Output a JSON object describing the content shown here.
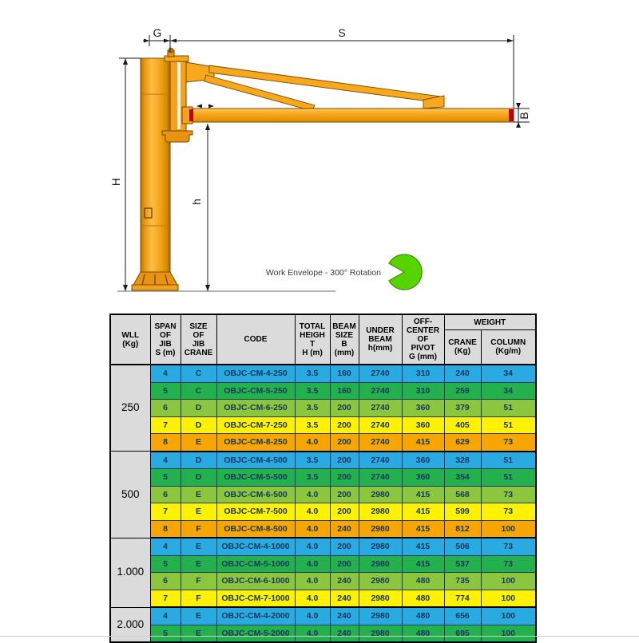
{
  "diagram": {
    "labels": {
      "g": "G",
      "s": "S",
      "h_total": "H",
      "h_under": "h",
      "b": "B"
    },
    "work_envelope_label": "Work Envelope - 300° Rotation",
    "colors": {
      "crane_orange": "#F7A118",
      "crane_outline": "#7A4A00",
      "accent_red": "#C00000",
      "envelope_green": "#55D400"
    }
  },
  "table": {
    "headers": {
      "wll": "WLL\n(Kg)",
      "span": "SPAN\nOF\nJIB\nS (m)",
      "size": "SIZE\nOF\nJIB\nCRANE",
      "code": "CODE",
      "total_height": "TOTAL\nHEIGH\nT\nH (m)",
      "beam_size": "BEAM\nSIZE\nB\n(mm)",
      "under_beam": "UNDER\nBEAM\nh(mm)",
      "off_center": "OFF-\nCENTER\nOF\nPIVOT\nG (mm)",
      "weight": "WEIGHT",
      "crane": "CRANE\n(Kg)",
      "column": "COLUMN\n(Kg/m)"
    },
    "row_fields": [
      "span",
      "size",
      "code",
      "total_height",
      "beam_size",
      "under_beam",
      "off_center",
      "crane_weight",
      "column_weight"
    ],
    "row_colors": {
      "blue": "#29ABE2",
      "green": "#22B14C",
      "light_green": "#8CC63F",
      "yellow": "#FFF200",
      "orange": "#F7A600"
    },
    "groups": [
      {
        "wll": "250",
        "rows": [
          {
            "values": [
              "4",
              "C",
              "OBJC-CM-4-250",
              "3.5",
              "160",
              "2740",
              "310",
              "240",
              "34"
            ],
            "color": "blue"
          },
          {
            "values": [
              "5",
              "C",
              "OBJC-CM-5-250",
              "3.5",
              "160",
              "2740",
              "310",
              "259",
              "34"
            ],
            "color": "green"
          },
          {
            "values": [
              "6",
              "D",
              "OBJC-CM-6-250",
              "3.5",
              "200",
              "2740",
              "360",
              "379",
              "51"
            ],
            "color": "light_green"
          },
          {
            "values": [
              "7",
              "D",
              "OBJC-CM-7-250",
              "3.5",
              "200",
              "2740",
              "360",
              "405",
              "51"
            ],
            "color": "yellow"
          },
          {
            "values": [
              "8",
              "E",
              "OBJC-CM-8-250",
              "4.0",
              "200",
              "2740",
              "415",
              "629",
              "73"
            ],
            "color": "orange"
          }
        ]
      },
      {
        "wll": "500",
        "rows": [
          {
            "values": [
              "4",
              "D",
              "OBJC-CM-4-500",
              "3.5",
              "200",
              "2740",
              "360",
              "328",
              "51"
            ],
            "color": "blue"
          },
          {
            "values": [
              "5",
              "D",
              "OBJC-CM-5-500",
              "3.5",
              "200",
              "2740",
              "360",
              "354",
              "51"
            ],
            "color": "green"
          },
          {
            "values": [
              "6",
              "E",
              "OBJC-CM-6-500",
              "4.0",
              "200",
              "2980",
              "415",
              "568",
              "73"
            ],
            "color": "light_green"
          },
          {
            "values": [
              "7",
              "E",
              "OBJC-CM-7-500",
              "4.0",
              "200",
              "2980",
              "415",
              "599",
              "73"
            ],
            "color": "yellow"
          },
          {
            "values": [
              "8",
              "F",
              "OBJC-CM-8-500",
              "4.0",
              "240",
              "2980",
              "415",
              "812",
              "100"
            ],
            "color": "orange"
          }
        ]
      },
      {
        "wll": "1.000",
        "rows": [
          {
            "values": [
              "4",
              "E",
              "OBJC-CM-4-1000",
              "4.0",
              "200",
              "2980",
              "415",
              "506",
              "73"
            ],
            "color": "blue"
          },
          {
            "values": [
              "5",
              "E",
              "OBJC-CM-5-1000",
              "4.0",
              "200",
              "2980",
              "415",
              "537",
              "73"
            ],
            "color": "green"
          },
          {
            "values": [
              "6",
              "F",
              "OBJC-CM-6-1000",
              "4.0",
              "240",
              "2980",
              "480",
              "735",
              "100"
            ],
            "color": "light_green"
          },
          {
            "values": [
              "7",
              "F",
              "OBJC-CM-7-1000",
              "4.0",
              "240",
              "2980",
              "480",
              "774",
              "100"
            ],
            "color": "yellow"
          }
        ]
      },
      {
        "wll": "2.000",
        "rows": [
          {
            "values": [
              "4",
              "E",
              "OBJC-CM-4-2000",
              "4.0",
              "240",
              "2980",
              "480",
              "656",
              "100"
            ],
            "color": "blue"
          },
          {
            "values": [
              "5",
              "E",
              "OBJC-CM-5-2000",
              "4.0",
              "240",
              "2980",
              "480",
              "695",
              "100"
            ],
            "color": "green"
          }
        ]
      }
    ]
  }
}
